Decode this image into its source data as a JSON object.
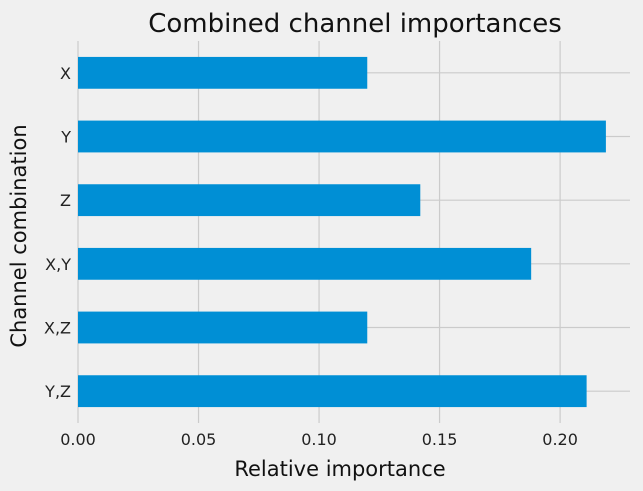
{
  "chart_data": {
    "type": "bar",
    "orientation": "horizontal",
    "title": "Combined channel importances",
    "xlabel": "Relative importance",
    "ylabel": "Channel combination",
    "categories": [
      "X",
      "Y",
      "Z",
      "X,Y",
      "X,Z",
      "Y,Z"
    ],
    "values": [
      0.12,
      0.219,
      0.142,
      0.188,
      0.12,
      0.211
    ],
    "xlim": [
      0,
      0.229
    ],
    "xticks": [
      0.0,
      0.05,
      0.1,
      0.15,
      0.2
    ],
    "xtick_labels": [
      "0.00",
      "0.05",
      "0.10",
      "0.15",
      "0.20"
    ],
    "grid": true,
    "colors": {
      "bar": "#008fd5",
      "background": "#f0f0f0",
      "grid": "#cbcbcb"
    }
  }
}
